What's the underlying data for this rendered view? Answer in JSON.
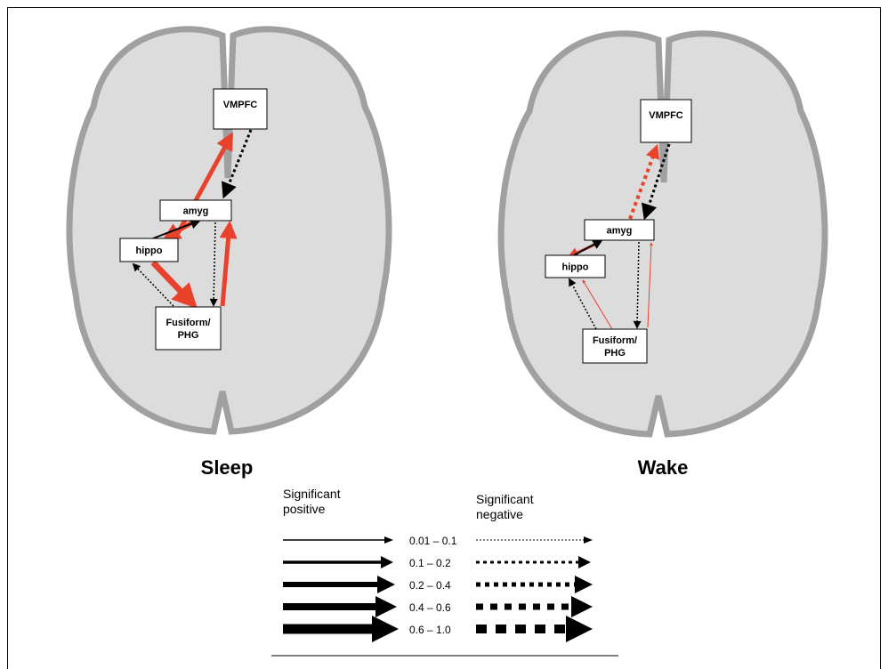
{
  "panels": [
    {
      "title": "Sleep",
      "nodes": [
        {
          "label_lines": [
            "VMPFC"
          ]
        },
        {
          "label_lines": [
            "amyg"
          ]
        },
        {
          "label_lines": [
            "hippo"
          ]
        },
        {
          "label_lines": [
            "Fusiform/",
            "PHG"
          ]
        }
      ]
    },
    {
      "title": "Wake",
      "nodes": [
        {
          "label_lines": [
            "VMPFC"
          ]
        },
        {
          "label_lines": [
            "amyg"
          ]
        },
        {
          "label_lines": [
            "hippo"
          ]
        },
        {
          "label_lines": [
            "Fusiform/",
            "PHG"
          ]
        }
      ]
    }
  ],
  "legend": {
    "positive_heading": [
      "Significant",
      "positive"
    ],
    "negative_heading": [
      "Significant",
      "negative"
    ],
    "ranges": [
      "0.01 – 0.1",
      "0.1 – 0.2",
      "0.2 – 0.4",
      "0.4 – 0.6",
      "0.6 – 1.0"
    ]
  }
}
